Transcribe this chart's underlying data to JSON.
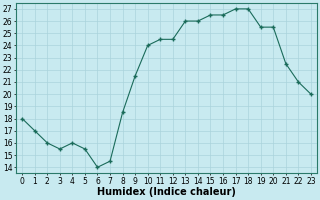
{
  "x": [
    0,
    1,
    2,
    3,
    4,
    5,
    6,
    7,
    8,
    9,
    10,
    11,
    12,
    13,
    14,
    15,
    16,
    17,
    18,
    19,
    20,
    21,
    22,
    23
  ],
  "y": [
    18,
    17,
    16,
    15.5,
    16,
    15.5,
    14,
    14.5,
    18.5,
    21.5,
    24,
    24.5,
    24.5,
    26,
    26,
    26.5,
    26.5,
    27,
    27,
    25.5,
    25.5,
    22.5,
    21,
    20
  ],
  "xlabel": "Humidex (Indice chaleur)",
  "xlim": [
    -0.5,
    23.5
  ],
  "ylim": [
    13.5,
    27.5
  ],
  "yticks": [
    14,
    15,
    16,
    17,
    18,
    19,
    20,
    21,
    22,
    23,
    24,
    25,
    26,
    27
  ],
  "xticks": [
    0,
    1,
    2,
    3,
    4,
    5,
    6,
    7,
    8,
    9,
    10,
    11,
    12,
    13,
    14,
    15,
    16,
    17,
    18,
    19,
    20,
    21,
    22,
    23
  ],
  "line_color": "#1a6b5a",
  "marker_color": "#1a6b5a",
  "bg_color": "#c8eaf0",
  "grid_color": "#aad4dc",
  "xlabel_fontsize": 7,
  "tick_fontsize": 5.5
}
